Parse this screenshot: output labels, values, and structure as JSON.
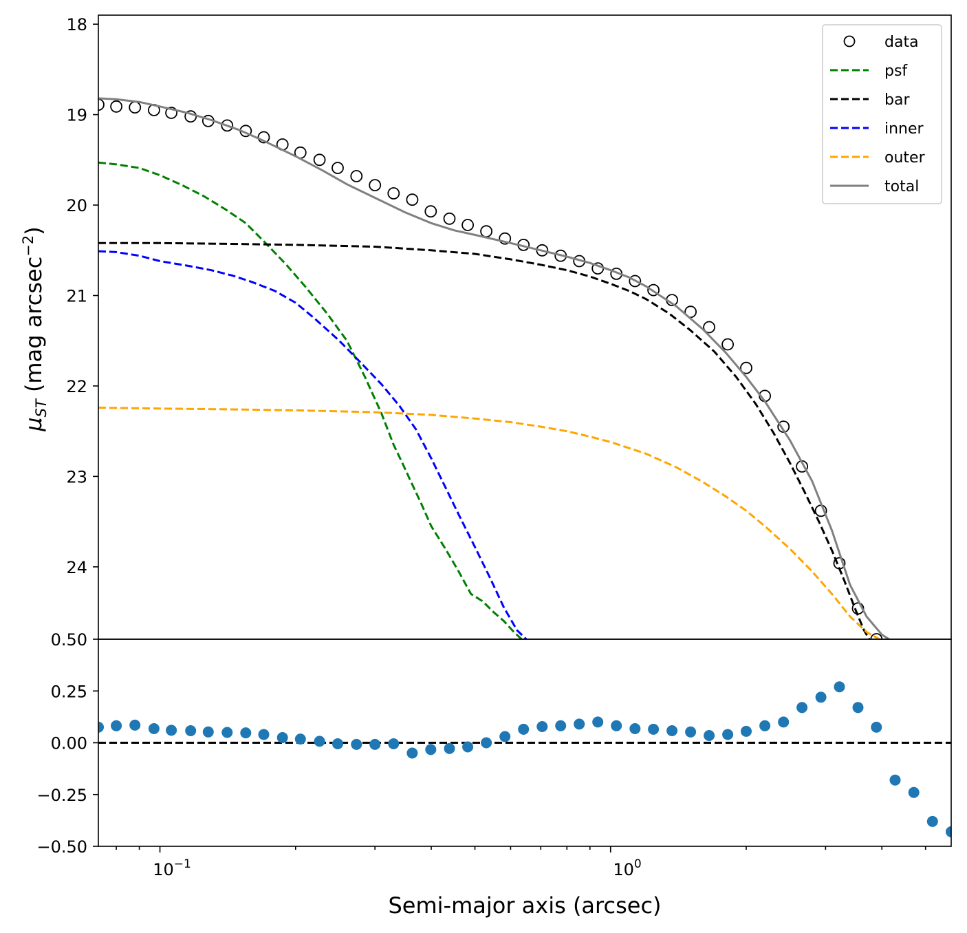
{
  "colors": {
    "data": "#000000",
    "psf": "#008000",
    "bar": "#000000",
    "inner": "#0000ff",
    "outer": "#ffa500",
    "total": "#808080",
    "residual": "#1f77b4"
  },
  "chart_data": {
    "type": "line",
    "xscale": "log",
    "xlim": [
      0.073,
      5.7
    ],
    "xlabel": "Semi-major axis (arcsec)",
    "x_tick_labels": [
      {
        "value": 0.1,
        "base": "10",
        "exp": "−1"
      },
      {
        "value": 1,
        "base": "10",
        "exp": "0"
      }
    ],
    "top_panel": {
      "ylabel_main": "μ",
      "ylabel_sub": "ST",
      "ylabel_rest": " (mag arcsec",
      "ylabel_sup": "−2",
      "ylabel_end": ")",
      "ylim": [
        24.8,
        17.9
      ],
      "inverted": true,
      "yticks": [
        18,
        19,
        20,
        21,
        22,
        23,
        24
      ],
      "ytick_labels": [
        "18",
        "19",
        "20",
        "21",
        "22",
        "23",
        "24"
      ],
      "legend": [
        "data",
        "psf",
        "bar",
        "inner",
        "outer",
        "total"
      ],
      "legend_position": "top-right",
      "series": [
        {
          "name": "data",
          "style": "open-circle",
          "x": [
            0.073,
            0.08,
            0.088,
            0.097,
            0.106,
            0.117,
            0.128,
            0.141,
            0.155,
            0.17,
            0.187,
            0.205,
            0.226,
            0.248,
            0.273,
            0.3,
            0.33,
            0.363,
            0.399,
            0.439,
            0.482,
            0.53,
            0.583,
            0.641,
            0.705,
            0.775,
            0.852,
            0.937,
            1.03,
            1.133,
            1.245,
            1.369,
            1.505,
            1.655,
            1.82,
            2.0,
            2.2,
            2.42,
            2.66,
            2.93,
            3.22,
            3.54,
            3.89
          ],
          "y": [
            18.89,
            18.91,
            18.92,
            18.95,
            18.98,
            19.02,
            19.07,
            19.12,
            19.18,
            19.25,
            19.33,
            19.42,
            19.5,
            19.59,
            19.68,
            19.78,
            19.87,
            19.94,
            20.07,
            20.15,
            20.22,
            20.29,
            20.37,
            20.44,
            20.5,
            20.56,
            20.62,
            20.7,
            20.76,
            20.84,
            20.94,
            21.05,
            21.18,
            21.35,
            21.54,
            21.8,
            22.11,
            22.45,
            22.89,
            23.38,
            23.96,
            24.46,
            24.8
          ]
        },
        {
          "name": "psf",
          "style": "dashed",
          "x": [
            0.073,
            0.08,
            0.09,
            0.1,
            0.112,
            0.125,
            0.14,
            0.155,
            0.17,
            0.19,
            0.21,
            0.235,
            0.26,
            0.285,
            0.31,
            0.33,
            0.345,
            0.36,
            0.38,
            0.4,
            0.43,
            0.46,
            0.49,
            0.52,
            0.55,
            0.58,
            0.61,
            0.635
          ],
          "y": [
            19.53,
            19.55,
            19.59,
            19.67,
            19.78,
            19.9,
            20.05,
            20.2,
            20.4,
            20.65,
            20.9,
            21.2,
            21.5,
            21.9,
            22.3,
            22.65,
            22.85,
            23.05,
            23.3,
            23.55,
            23.8,
            24.05,
            24.3,
            24.38,
            24.5,
            24.6,
            24.72,
            24.8
          ]
        },
        {
          "name": "bar",
          "style": "dashed",
          "x": [
            0.073,
            0.1,
            0.15,
            0.2,
            0.3,
            0.4,
            0.5,
            0.6,
            0.7,
            0.8,
            0.9,
            1.0,
            1.1,
            1.2,
            1.35,
            1.5,
            1.7,
            1.9,
            2.1,
            2.3,
            2.5,
            2.7,
            2.9,
            3.1,
            3.3,
            3.5,
            3.65,
            3.75
          ],
          "y": [
            20.42,
            20.42,
            20.43,
            20.44,
            20.46,
            20.5,
            20.54,
            20.6,
            20.66,
            20.72,
            20.79,
            20.87,
            20.95,
            21.04,
            21.2,
            21.38,
            21.62,
            21.9,
            22.2,
            22.52,
            22.85,
            23.18,
            23.5,
            23.82,
            24.15,
            24.48,
            24.7,
            24.8
          ]
        },
        {
          "name": "inner",
          "style": "dashed",
          "x": [
            0.073,
            0.08,
            0.09,
            0.1,
            0.115,
            0.13,
            0.145,
            0.16,
            0.18,
            0.2,
            0.22,
            0.25,
            0.28,
            0.31,
            0.34,
            0.37,
            0.4,
            0.43,
            0.46,
            0.5,
            0.54,
            0.58,
            0.62,
            0.65
          ],
          "y": [
            20.51,
            20.52,
            20.56,
            20.62,
            20.67,
            20.72,
            20.78,
            20.85,
            20.95,
            21.08,
            21.25,
            21.5,
            21.75,
            21.98,
            22.22,
            22.48,
            22.8,
            23.12,
            23.42,
            23.78,
            24.12,
            24.45,
            24.7,
            24.8
          ]
        },
        {
          "name": "outer",
          "style": "dashed",
          "x": [
            0.073,
            0.1,
            0.15,
            0.2,
            0.3,
            0.4,
            0.5,
            0.6,
            0.7,
            0.8,
            0.9,
            1.0,
            1.2,
            1.4,
            1.6,
            1.8,
            2.0,
            2.2,
            2.5,
            2.8,
            3.1,
            3.4,
            3.7,
            3.95
          ],
          "y": [
            22.24,
            22.25,
            22.26,
            22.27,
            22.29,
            22.32,
            22.36,
            22.4,
            22.45,
            22.5,
            22.56,
            22.62,
            22.75,
            22.9,
            23.06,
            23.22,
            23.38,
            23.55,
            23.8,
            24.05,
            24.3,
            24.55,
            24.72,
            24.8
          ]
        },
        {
          "name": "total",
          "style": "solid",
          "x": [
            0.073,
            0.08,
            0.09,
            0.1,
            0.115,
            0.13,
            0.15,
            0.17,
            0.2,
            0.23,
            0.26,
            0.3,
            0.35,
            0.4,
            0.45,
            0.5,
            0.6,
            0.7,
            0.8,
            0.9,
            1.0,
            1.1,
            1.2,
            1.4,
            1.6,
            1.8,
            2.0,
            2.2,
            2.5,
            2.8,
            3.1,
            3.4,
            3.7,
            4.0,
            4.15
          ],
          "y": [
            18.82,
            18.83,
            18.86,
            18.91,
            18.98,
            19.06,
            19.17,
            19.29,
            19.46,
            19.62,
            19.77,
            19.92,
            20.08,
            20.2,
            20.28,
            20.33,
            20.42,
            20.5,
            20.57,
            20.64,
            20.72,
            20.8,
            20.9,
            21.12,
            21.37,
            21.63,
            21.9,
            22.17,
            22.6,
            23.05,
            23.6,
            24.2,
            24.55,
            24.75,
            24.8
          ]
        }
      ]
    },
    "bottom_panel": {
      "ylim": [
        -0.5,
        0.5
      ],
      "yticks": [
        0.5,
        0.25,
        0,
        -0.25,
        -0.5
      ],
      "ytick_labels": [
        "0.50",
        "0.25",
        "0.00",
        "−0.25",
        "−0.50"
      ],
      "zero_line": 0,
      "series": [
        {
          "name": "residual",
          "style": "filled-circle",
          "x": [
            0.073,
            0.08,
            0.088,
            0.097,
            0.106,
            0.117,
            0.128,
            0.141,
            0.155,
            0.17,
            0.187,
            0.205,
            0.226,
            0.248,
            0.273,
            0.3,
            0.33,
            0.363,
            0.399,
            0.439,
            0.482,
            0.53,
            0.583,
            0.641,
            0.705,
            0.775,
            0.852,
            0.937,
            1.03,
            1.133,
            1.245,
            1.369,
            1.505,
            1.655,
            1.82,
            2.0,
            2.2,
            2.42,
            2.66,
            2.93,
            3.22,
            3.54,
            3.89,
            4.28,
            4.71,
            5.18,
            5.7
          ],
          "y": [
            0.075,
            0.082,
            0.085,
            0.068,
            0.06,
            0.058,
            0.052,
            0.05,
            0.048,
            0.04,
            0.025,
            0.018,
            0.007,
            -0.005,
            -0.008,
            -0.008,
            -0.005,
            -0.05,
            -0.033,
            -0.028,
            -0.02,
            0.0,
            0.03,
            0.065,
            0.078,
            0.082,
            0.09,
            0.1,
            0.082,
            0.068,
            0.065,
            0.058,
            0.052,
            0.035,
            0.04,
            0.055,
            0.082,
            0.1,
            0.17,
            0.22,
            0.27,
            0.17,
            0.075,
            -0.18,
            -0.24,
            -0.38,
            -0.43
          ]
        }
      ]
    }
  }
}
